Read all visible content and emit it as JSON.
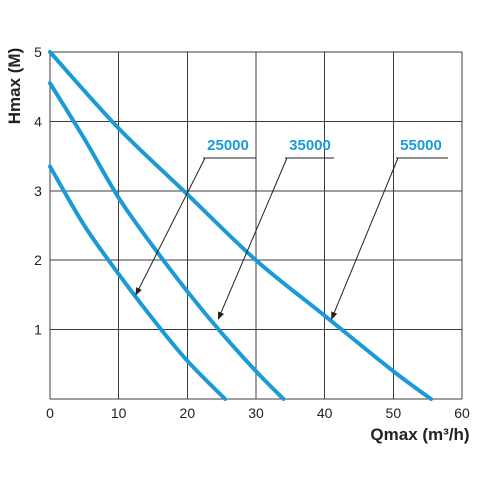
{
  "chart_data": {
    "type": "line",
    "xlabel": "Qmax (m³/h)",
    "ylabel": "Hmax (M)",
    "xlim": [
      0,
      60
    ],
    "ylim": [
      0,
      5
    ],
    "xticks": [
      0,
      10,
      20,
      30,
      40,
      50,
      60
    ],
    "yticks": [
      1,
      2,
      3,
      4,
      5
    ],
    "grid": true,
    "line_color": "#1a9bd7",
    "label_color": "#1a9bd7",
    "series": [
      {
        "name": "25000",
        "x": [
          0,
          5,
          10,
          15,
          20,
          25.5
        ],
        "y": [
          3.35,
          2.5,
          1.8,
          1.15,
          0.55,
          0
        ]
      },
      {
        "name": "35000",
        "x": [
          0,
          5,
          10,
          15,
          20,
          25,
          30,
          34
        ],
        "y": [
          4.55,
          3.75,
          2.9,
          2.2,
          1.55,
          0.95,
          0.4,
          0
        ]
      },
      {
        "name": "55000",
        "x": [
          0,
          10,
          20,
          30,
          40,
          50,
          55.5
        ],
        "y": [
          5.0,
          3.9,
          2.95,
          2.0,
          1.2,
          0.4,
          0
        ]
      }
    ],
    "annotations": [
      {
        "text": "25000",
        "target": [
          12.5,
          1.5
        ]
      },
      {
        "text": "35000",
        "target": [
          24.5,
          1.15
        ]
      },
      {
        "text": "55000",
        "target": [
          41,
          1.15
        ]
      }
    ]
  }
}
